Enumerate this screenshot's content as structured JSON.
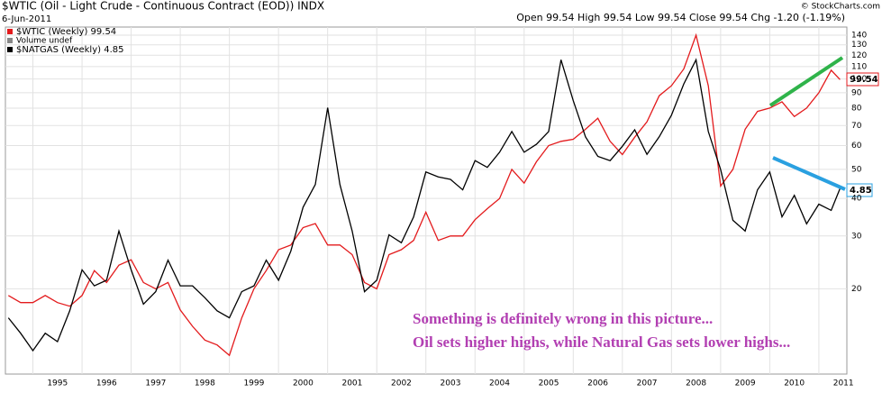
{
  "chart_data": {
    "type": "line",
    "title": "$WTIC (Oil - Light Crude - Continuous Contract (EOD)) INDX",
    "date": "6-Jun-2011",
    "credit": "© StockCharts.com",
    "quote": "Open 99.54 High 99.54 Low 99.54 Close 99.54 Chg -1.20 (-1.19%)",
    "legend": [
      "$WTIC (Weekly) 99.54",
      "Volume undef",
      "$NATGAS (Weekly) 4.85"
    ],
    "price_flags": [
      "99.54",
      "4.85"
    ],
    "annotations": [
      "Something is definitely wrong in this picture...",
      "Oil sets higher highs, while Natural Gas sets lower highs..."
    ],
    "log_scale": true,
    "grid": true,
    "x": [
      1994.5,
      1994.75,
      1995,
      1995.25,
      1995.5,
      1995.75,
      1996,
      1996.25,
      1996.5,
      1996.75,
      1997,
      1997.25,
      1997.5,
      1997.75,
      1998,
      1998.25,
      1998.5,
      1998.75,
      1999,
      1999.25,
      1999.5,
      1999.75,
      2000,
      2000.25,
      2000.5,
      2000.75,
      2001,
      2001.25,
      2001.5,
      2001.75,
      2002,
      2002.25,
      2002.5,
      2002.75,
      2003,
      2003.25,
      2003.5,
      2003.75,
      2004,
      2004.25,
      2004.5,
      2004.75,
      2005,
      2005.25,
      2005.5,
      2005.75,
      2006,
      2006.25,
      2006.5,
      2006.75,
      2007,
      2007.25,
      2007.5,
      2007.75,
      2008,
      2008.25,
      2008.5,
      2008.75,
      2009,
      2009.25,
      2009.5,
      2009.75,
      2010,
      2010.25,
      2010.5,
      2010.75,
      2011,
      2011.25,
      2011.43
    ],
    "series": [
      {
        "name": "$WTIC",
        "color": "#e31a1c",
        "values": [
          19,
          18,
          18,
          19,
          18,
          17.5,
          19,
          23,
          21,
          24,
          25,
          21,
          20,
          21,
          17,
          15,
          13.5,
          13,
          12,
          16,
          20,
          23,
          27,
          28,
          32,
          33,
          28,
          28,
          26,
          21,
          20,
          26,
          27,
          29,
          36,
          29,
          30,
          30,
          34,
          37,
          40,
          50,
          45,
          53,
          60,
          62,
          63,
          68,
          74,
          62,
          56,
          64,
          72,
          88,
          95,
          108,
          140,
          95,
          44,
          50,
          68,
          78,
          80,
          84,
          75,
          80,
          90,
          107,
          99.54
        ]
      },
      {
        "name": "$NATGAS",
        "color": "#000000",
        "axis": "y2",
        "values": [
          1.8,
          1.6,
          1.4,
          1.6,
          1.5,
          1.9,
          2.6,
          2.3,
          2.4,
          3.5,
          2.6,
          2.0,
          2.2,
          2.8,
          2.3,
          2.3,
          2.1,
          1.9,
          1.8,
          2.2,
          2.3,
          2.8,
          2.4,
          3.0,
          4.2,
          5.0,
          9.0,
          5.0,
          3.5,
          2.2,
          2.4,
          3.4,
          3.2,
          3.9,
          5.5,
          5.3,
          5.2,
          4.8,
          6.0,
          5.7,
          6.4,
          7.5,
          6.4,
          6.8,
          7.5,
          13.0,
          9.5,
          7.2,
          6.2,
          6.0,
          6.7,
          7.6,
          6.3,
          7.2,
          8.5,
          10.8,
          13.0,
          7.5,
          5.6,
          3.8,
          3.5,
          4.8,
          5.5,
          3.9,
          4.6,
          3.7,
          4.3,
          4.1,
          4.85
        ]
      }
    ],
    "xlim": [
      1994.44,
      2011.57
    ],
    "xticks": [
      1995,
      1996,
      1997,
      1998,
      1999,
      2000,
      2001,
      2002,
      2003,
      2004,
      2005,
      2006,
      2007,
      2008,
      2009,
      2010,
      2011
    ],
    "ylim": [
      10.4,
      149
    ],
    "yticks": [
      20,
      30,
      40,
      50,
      60,
      70,
      80,
      90,
      100,
      110,
      120,
      130,
      140
    ],
    "y2lim": [
      1.17,
      16.7
    ]
  }
}
